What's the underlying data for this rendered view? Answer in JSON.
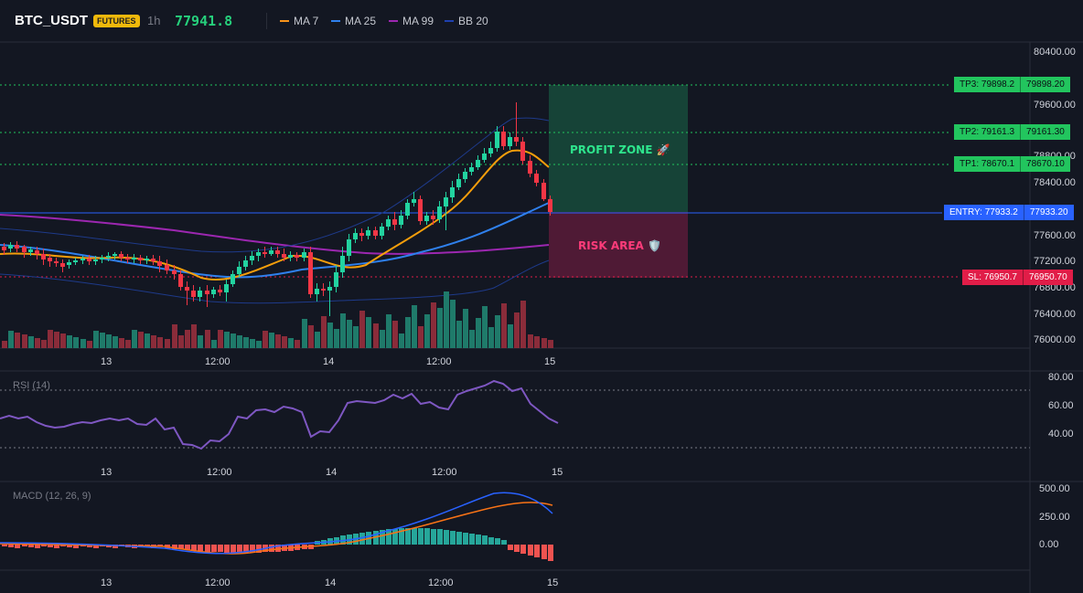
{
  "header": {
    "symbol": "BTC_USDT",
    "badge": "FUTURES",
    "timeframe": "1h",
    "last_price": "77941.8",
    "indicators": [
      {
        "label": "MA 7",
        "color": "#f7931a"
      },
      {
        "label": "MA 25",
        "color": "#2f80ed"
      },
      {
        "label": "MA 99",
        "color": "#9c27b0"
      },
      {
        "label": "BB 20",
        "color": "#1e3a8a"
      }
    ]
  },
  "main_axis": {
    "ticks": [
      "80400.00",
      "79600.00",
      "78800.00",
      "78400.00",
      "77600.00",
      "77200.00",
      "76800.00",
      "76400.00",
      "76000.00"
    ]
  },
  "time_axis": {
    "labels": [
      "13",
      "12:00",
      "14",
      "12:00",
      "15"
    ]
  },
  "zones": {
    "profit_label": "PROFIT ZONE 🚀",
    "risk_label": "RISK AREA 🛡️"
  },
  "levels": [
    {
      "name": "tp3",
      "label": "TP3: 79898.2",
      "value": "79898.20",
      "color": "#22c55e"
    },
    {
      "name": "tp2",
      "label": "TP2: 79161.3",
      "value": "79161.30",
      "color": "#22c55e"
    },
    {
      "name": "tp1",
      "label": "TP1: 78670.1",
      "value": "78670.10",
      "color": "#22c55e"
    },
    {
      "name": "entry",
      "label": "ENTRY: 77933.2",
      "value": "77933.20",
      "color": "#2962ff"
    },
    {
      "name": "sl",
      "label": "SL: 76950.7",
      "value": "76950.70",
      "color": "#e11d48"
    }
  ],
  "rsi": {
    "title": "RSI (14)",
    "ticks": [
      "80.00",
      "60.00",
      "40.00"
    ]
  },
  "macd": {
    "title": "MACD (12, 26, 9)",
    "ticks": [
      "500.00",
      "250.00",
      "0.00"
    ]
  },
  "colors": {
    "up": "#22d3a0",
    "down": "#f23645",
    "bg": "#131722"
  }
}
